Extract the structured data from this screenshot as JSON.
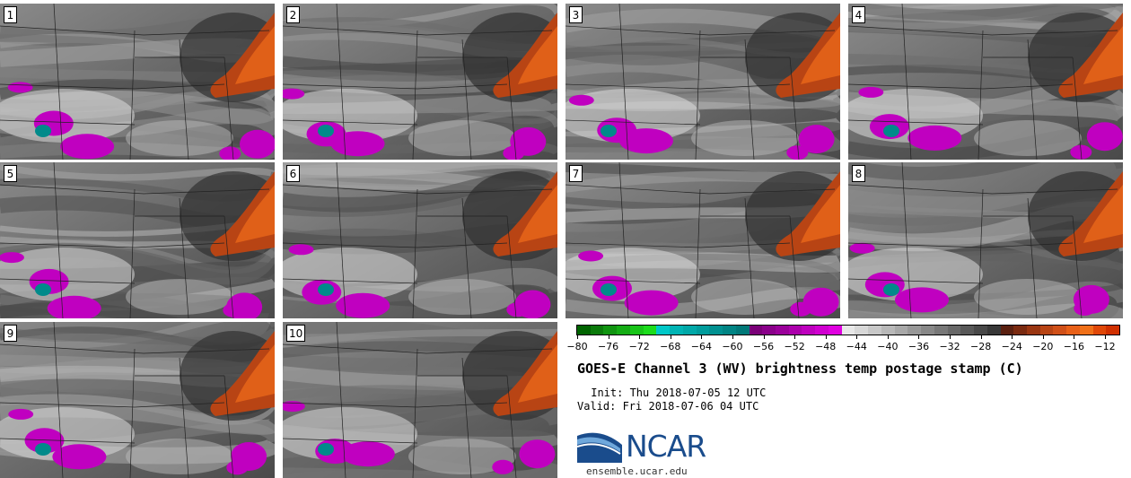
{
  "panels": [
    {
      "label": "1"
    },
    {
      "label": "2"
    },
    {
      "label": "3"
    },
    {
      "label": "4"
    },
    {
      "label": "5"
    },
    {
      "label": "6"
    },
    {
      "label": "7"
    },
    {
      "label": "8"
    },
    {
      "label": "9"
    },
    {
      "label": "10"
    }
  ],
  "title": "GOES-E Channel 3 (WV) brightness temp postage stamp (C)",
  "init": " Init: Thu 2018-07-05 12 UTC",
  "valid": "Valid: Fri 2018-07-06 04 UTC",
  "logo": {
    "text": "NCAR",
    "color": "#1a4c8c"
  },
  "site": "ensemble.ucar.edu",
  "colorbar": {
    "colors": [
      "#006400",
      "#0a7a0a",
      "#109410",
      "#14ac14",
      "#18c418",
      "#1cdc1c",
      "#00c8c8",
      "#00b4b4",
      "#00a8a8",
      "#009c9c",
      "#009090",
      "#008484",
      "#007878",
      "#7a0078",
      "#8a008a",
      "#9a009a",
      "#ac00ac",
      "#be00be",
      "#d000d0",
      "#e000e0",
      "#e8e8e8",
      "#d8d8d8",
      "#c8c8c8",
      "#b8b8b8",
      "#a8a8a8",
      "#989898",
      "#888888",
      "#787878",
      "#686868",
      "#585858",
      "#484848",
      "#383838",
      "#5a2010",
      "#7a2a10",
      "#9a3612",
      "#b84414",
      "#d05018",
      "#e86018",
      "#f07018",
      "#e04808",
      "#d03000"
    ],
    "tick_labels": [
      "-80",
      "-76",
      "-72",
      "-68",
      "-64",
      "-60",
      "-56",
      "-52",
      "-48",
      "-44",
      "-40",
      "-36",
      "-32",
      "-28",
      "-24",
      "-20",
      "-16",
      "-12"
    ]
  }
}
